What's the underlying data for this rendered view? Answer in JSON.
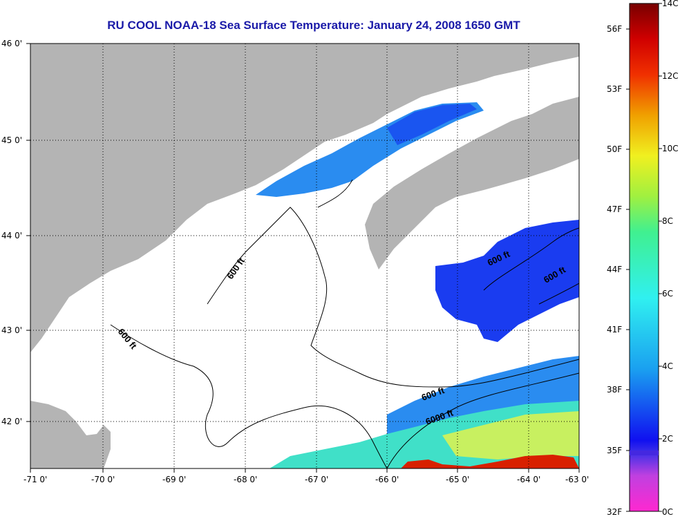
{
  "title": "RU COOL  NOAA-18  Sea Surface Temperature:  January 24, 2008 1650 GMT",
  "map": {
    "lon_ticks": [
      "-71 0'",
      "-70 0'",
      "-69 0'",
      "-68 0'",
      "-67 0'",
      "-66 0'",
      "-65 0'",
      "-64 0'",
      "-63 0'"
    ],
    "lat_ticks": [
      "46 0'",
      "45 0'",
      "44 0'",
      "43 0'",
      "42 0'"
    ],
    "contour_labels": [
      "600 ft",
      "600 ft",
      "600 ft",
      "600 ft",
      "600 ft",
      "6000 ft"
    ],
    "colors": {
      "land": "#b4b4b4",
      "cloud": "#ffffff",
      "cold": "#1a3cf0",
      "cool": "#2a8cf0",
      "mild": "#40e0c8",
      "warm": "#c8f060",
      "hot": "#d82000"
    }
  },
  "colorbar": {
    "celsius": [
      "14C",
      "12C",
      "10C",
      "8C",
      "6C",
      "4C",
      "2C",
      "0C"
    ],
    "fahrenheit": [
      "56F",
      "53F",
      "50F",
      "47F",
      "44F",
      "41F",
      "38F",
      "35F",
      "32F"
    ]
  }
}
